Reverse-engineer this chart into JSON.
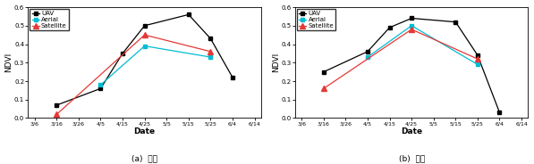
{
  "x_labels": [
    "3/6",
    "3/16",
    "3/26",
    "4/5",
    "4/15",
    "4/25",
    "5/5",
    "5/15",
    "5/25",
    "6/4",
    "6/14"
  ],
  "x_values": [
    0,
    1,
    2,
    3,
    4,
    5,
    6,
    7,
    8,
    9,
    10
  ],
  "chart_a": {
    "title": "(a)  양파",
    "UAV": [
      null,
      0.07,
      null,
      0.16,
      0.35,
      0.5,
      null,
      0.56,
      0.43,
      0.22,
      null
    ],
    "Aerial": [
      null,
      null,
      null,
      0.18,
      null,
      0.39,
      null,
      null,
      0.33,
      null,
      null
    ],
    "Satellite": [
      null,
      0.02,
      null,
      null,
      null,
      0.45,
      null,
      null,
      0.36,
      null,
      null
    ]
  },
  "chart_b": {
    "title": "(b)  마늘",
    "UAV": [
      null,
      0.25,
      null,
      0.36,
      0.49,
      0.54,
      null,
      0.52,
      0.34,
      0.03,
      null
    ],
    "Aerial": [
      null,
      null,
      null,
      0.33,
      null,
      0.5,
      null,
      null,
      0.29,
      null,
      null
    ],
    "Satellite": [
      null,
      0.16,
      null,
      null,
      null,
      0.48,
      null,
      null,
      0.32,
      null,
      null
    ]
  },
  "colors": {
    "UAV": "#000000",
    "Aerial": "#00bcd4",
    "Satellite": "#e53935"
  },
  "markers": {
    "UAV": "s",
    "Aerial": "s",
    "Satellite": "^"
  },
  "ylabel": "NDVI",
  "xlabel": "Date",
  "ylim": [
    0.0,
    0.6
  ],
  "yticks": [
    0.0,
    0.1,
    0.2,
    0.3,
    0.4,
    0.5,
    0.6
  ],
  "figsize": [
    5.97,
    1.84
  ],
  "dpi": 100
}
